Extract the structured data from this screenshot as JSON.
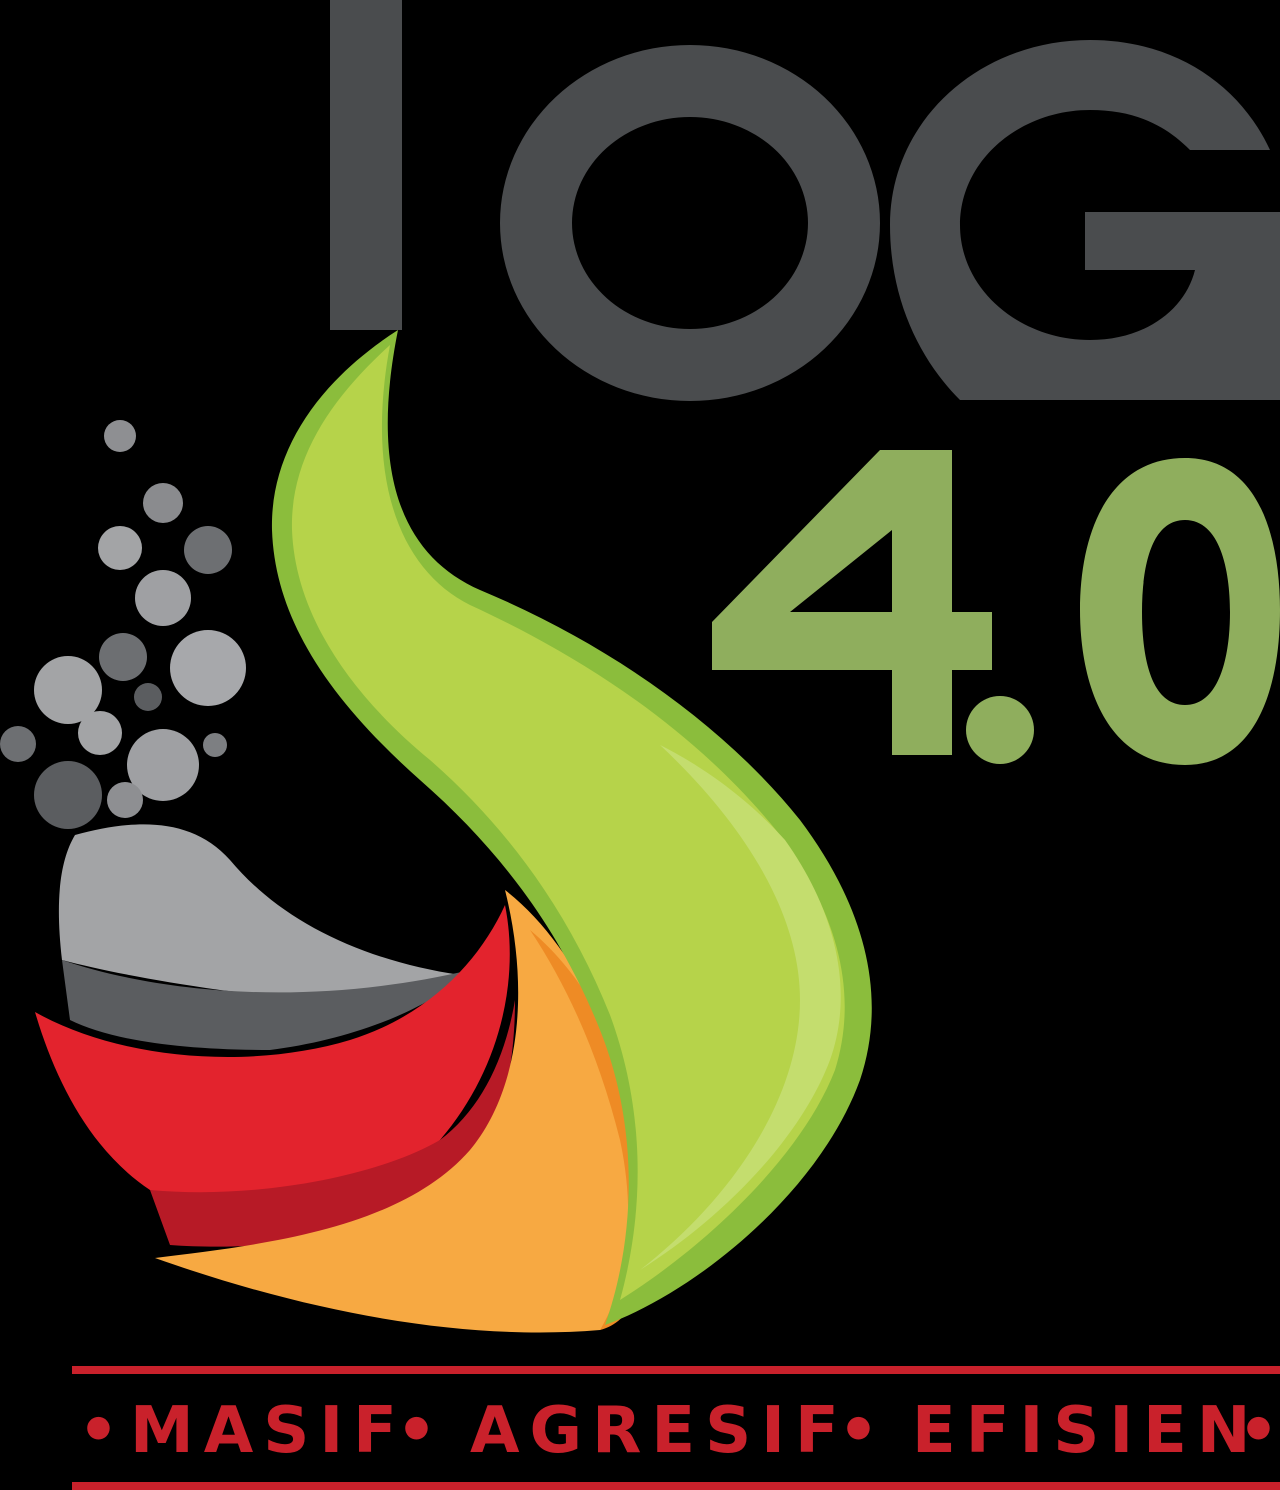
{
  "logo": {
    "wordmark": "IOG",
    "version": "4.0",
    "tagline": {
      "words": [
        "MASIF",
        "AGRESIF",
        "EFISIEN"
      ],
      "separator": "•"
    }
  },
  "colors": {
    "background": "#000000",
    "wordmark": "#4a4c4e",
    "version": "#8fae5d",
    "tagline": "#c9212b",
    "rule": "#c9212b",
    "green_light": "#b6d34a",
    "green_dark": "#8bbd3c",
    "orange": "#f7a942",
    "orange_dark": "#ee8b25",
    "red": "#e3232d",
    "red_dark": "#b71a26",
    "gray_light": "#a3a4a6",
    "gray_dark": "#5b5d60"
  }
}
